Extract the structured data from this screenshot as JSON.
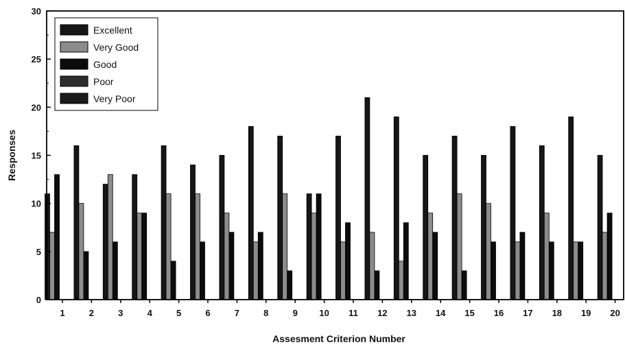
{
  "chart_data": {
    "type": "bar",
    "title": "",
    "xlabel": "Assesment Criterion Number",
    "ylabel": "Responses",
    "ylim": [
      0,
      30
    ],
    "yticks": [
      0,
      5,
      10,
      15,
      20,
      25,
      30
    ],
    "categories": [
      "1",
      "2",
      "3",
      "4",
      "5",
      "6",
      "7",
      "8",
      "9",
      "10",
      "11",
      "12",
      "13",
      "14",
      "15",
      "16",
      "17",
      "18",
      "19",
      "20"
    ],
    "legend_position": "top-left",
    "grid": false,
    "series": [
      {
        "name": "Excellent",
        "color": "#161616",
        "values": [
          11,
          16,
          12,
          13,
          16,
          14,
          15,
          18,
          17,
          11,
          17,
          21,
          19,
          15,
          17,
          15,
          18,
          16,
          19,
          15
        ]
      },
      {
        "name": "Very Good",
        "color": "#8c8c8c",
        "values": [
          7,
          10,
          13,
          9,
          11,
          11,
          9,
          6,
          11,
          9,
          6,
          7,
          4,
          9,
          11,
          10,
          6,
          9,
          6,
          7
        ]
      },
      {
        "name": "Good",
        "color": "#0c0c0c",
        "values": [
          13,
          5,
          6,
          9,
          4,
          6,
          7,
          7,
          3,
          11,
          8,
          3,
          8,
          7,
          3,
          6,
          7,
          6,
          6,
          9
        ]
      },
      {
        "name": "Poor",
        "color": "#2e2e2e",
        "values": [
          0,
          0,
          0,
          0,
          0,
          0,
          0,
          0,
          0,
          0,
          0,
          0,
          0,
          0,
          0,
          0,
          0,
          0,
          0,
          0
        ]
      },
      {
        "name": "Very Poor",
        "color": "#1a1a1a",
        "values": [
          0,
          0,
          0,
          0,
          0,
          0,
          0,
          0,
          0,
          0,
          0,
          0,
          0,
          0,
          0,
          0,
          0,
          0,
          0,
          0
        ]
      }
    ]
  }
}
